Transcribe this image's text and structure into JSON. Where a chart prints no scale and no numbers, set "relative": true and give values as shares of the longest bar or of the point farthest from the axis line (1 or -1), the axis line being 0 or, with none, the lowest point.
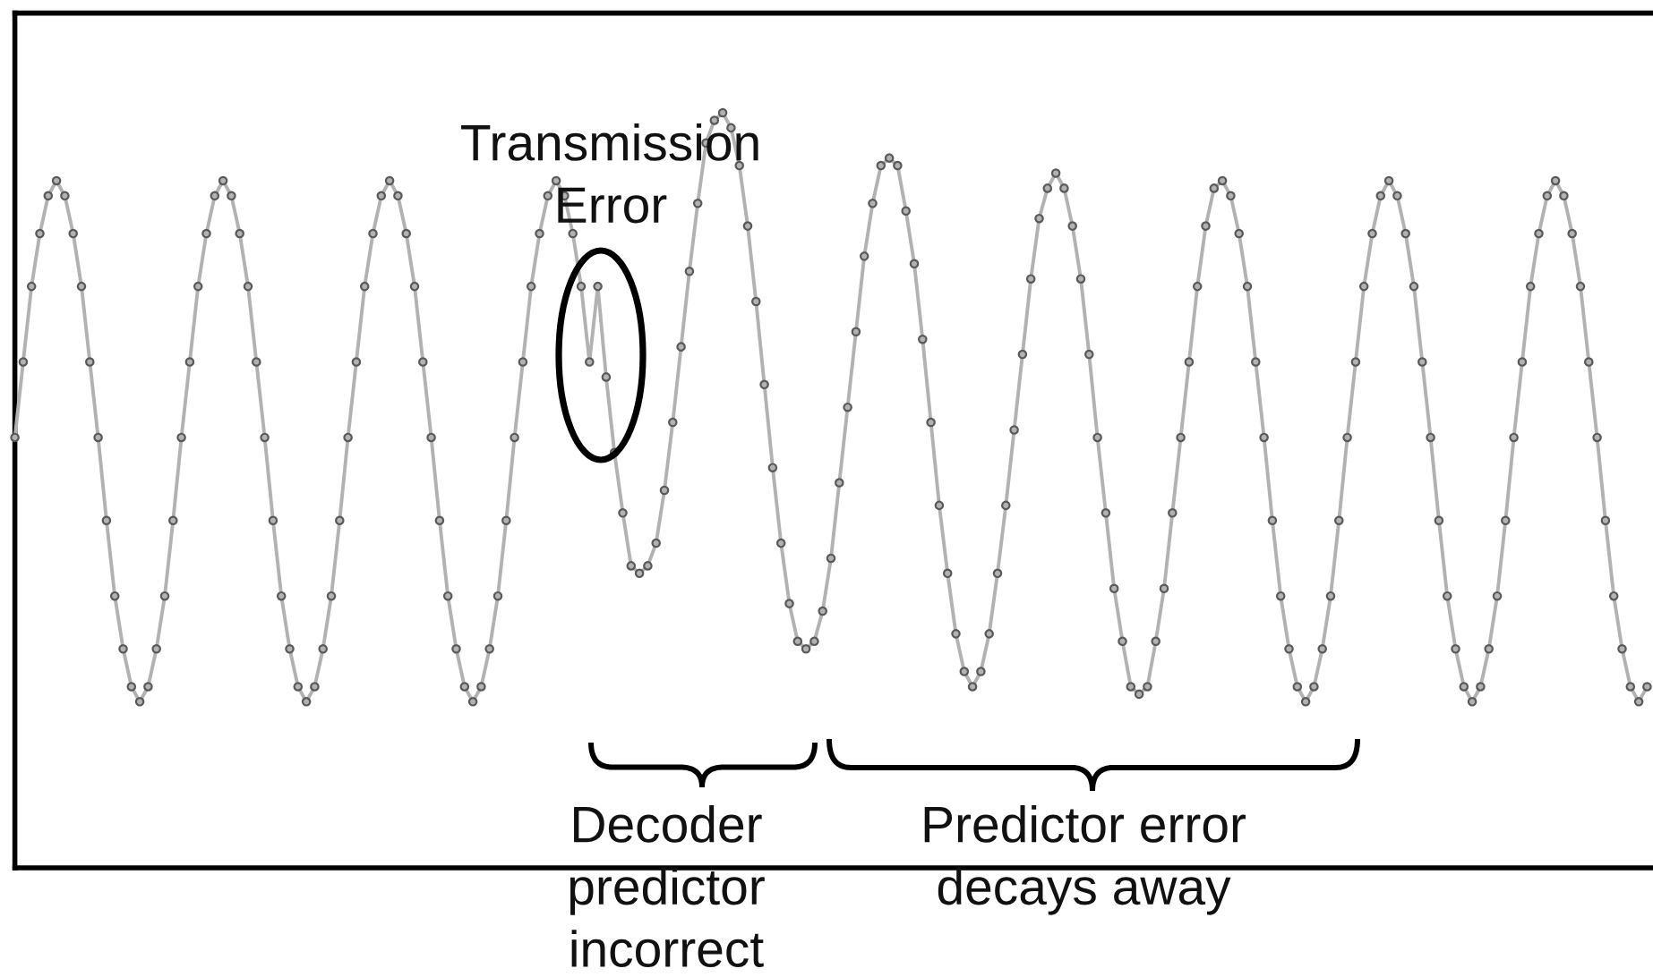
{
  "chart_data": {
    "type": "line",
    "relative": true,
    "marker": "circle",
    "line_style": "solid",
    "categories": [
      null,
      null,
      null,
      null,
      null,
      null,
      null,
      null,
      null,
      null,
      null,
      null,
      null,
      null,
      null,
      null,
      null,
      null,
      null,
      null,
      null,
      null,
      null,
      null,
      null,
      null,
      null,
      null,
      null,
      null,
      null,
      null,
      null,
      null,
      null,
      null,
      null,
      null,
      null,
      null,
      null,
      null,
      null,
      null,
      null,
      null,
      null,
      null,
      null,
      null,
      null,
      null,
      null,
      null,
      null,
      null,
      null,
      null,
      null,
      null,
      null,
      null,
      null,
      null,
      null,
      null,
      null,
      null,
      null,
      null,
      null,
      null,
      null,
      null,
      null,
      null,
      null,
      null,
      null,
      null,
      null,
      null,
      null,
      null,
      null,
      null,
      null,
      null,
      null,
      null,
      null,
      null,
      null,
      null,
      null,
      null,
      null,
      null,
      null,
      null,
      null,
      null,
      null,
      null,
      null,
      null,
      null,
      null,
      null,
      null,
      null,
      null,
      null,
      null,
      null,
      null,
      null,
      null,
      null,
      null,
      null,
      null,
      null,
      null,
      null,
      null,
      null,
      null,
      null,
      null,
      null,
      null,
      null,
      null,
      null,
      null,
      null,
      null,
      null,
      null,
      null,
      null,
      null,
      null,
      null,
      null,
      null,
      null,
      null,
      null,
      null,
      null,
      null,
      null,
      null,
      null,
      null,
      null,
      null,
      null,
      null,
      null,
      null,
      null,
      null,
      null,
      null,
      null,
      null,
      null,
      null,
      null,
      null,
      null,
      null,
      null,
      null,
      null,
      null,
      null,
      null,
      null,
      null,
      null,
      null,
      null,
      null,
      null,
      null,
      null,
      null,
      null,
      null,
      null,
      null,
      null,
      null
    ],
    "series": [
      {
        "color": "#b2b2b2",
        "values": [
          0.57,
          0.67,
          0.77,
          0.84,
          0.89,
          0.91,
          0.89,
          0.84,
          0.77,
          0.67,
          0.57,
          0.46,
          0.36,
          0.29,
          0.24,
          0.22,
          0.24,
          0.29,
          0.36,
          0.46,
          0.57,
          0.67,
          0.77,
          0.84,
          0.89,
          0.91,
          0.89,
          0.84,
          0.77,
          0.67,
          0.57,
          0.46,
          0.36,
          0.29,
          0.24,
          0.22,
          0.24,
          0.29,
          0.36,
          0.46,
          0.57,
          0.67,
          0.77,
          0.84,
          0.89,
          0.91,
          0.89,
          0.84,
          0.77,
          0.67,
          0.57,
          0.46,
          0.36,
          0.29,
          0.24,
          0.22,
          0.24,
          0.29,
          0.36,
          0.46,
          0.57,
          0.67,
          0.77,
          0.84,
          0.89,
          0.91,
          0.89,
          0.84,
          0.77,
          0.67,
          0.77,
          0.65,
          0.55,
          0.47,
          0.4,
          0.39,
          0.4,
          0.43,
          0.5,
          0.59,
          0.69,
          0.79,
          0.88,
          0.96,
          0.99,
          1,
          0.98,
          0.93,
          0.85,
          0.75,
          0.64,
          0.53,
          0.43,
          0.35,
          0.3,
          0.29,
          0.3,
          0.34,
          0.41,
          0.51,
          0.61,
          0.71,
          0.81,
          0.88,
          0.93,
          0.94,
          0.93,
          0.87,
          0.8,
          0.7,
          0.59,
          0.48,
          0.39,
          0.31,
          0.26,
          0.24,
          0.26,
          0.31,
          0.39,
          0.48,
          0.58,
          0.68,
          0.78,
          0.86,
          0.9,
          0.92,
          0.9,
          0.85,
          0.78,
          0.68,
          0.57,
          0.47,
          0.37,
          0.3,
          0.24,
          0.23,
          0.24,
          0.3,
          0.37,
          0.47,
          0.57,
          0.67,
          0.77,
          0.85,
          0.9,
          0.91,
          0.89,
          0.84,
          0.77,
          0.67,
          0.57,
          0.46,
          0.36,
          0.29,
          0.24,
          0.22,
          0.24,
          0.29,
          0.36,
          0.46,
          0.57,
          0.67,
          0.77,
          0.84,
          0.89,
          0.91,
          0.89,
          0.84,
          0.77,
          0.67,
          0.57,
          0.46,
          0.36,
          0.29,
          0.24,
          0.22,
          0.24,
          0.29,
          0.36,
          0.46,
          0.57,
          0.67,
          0.77,
          0.84,
          0.89,
          0.91,
          0.89,
          0.84,
          0.77,
          0.67,
          0.57,
          0.46,
          0.36,
          0.29,
          0.24,
          0.22,
          0.24
        ]
      }
    ],
    "annotations": [
      "Transmission\nError",
      "Decoder\npredictor\nincorrect",
      "Predictor error\ndecays away"
    ]
  }
}
